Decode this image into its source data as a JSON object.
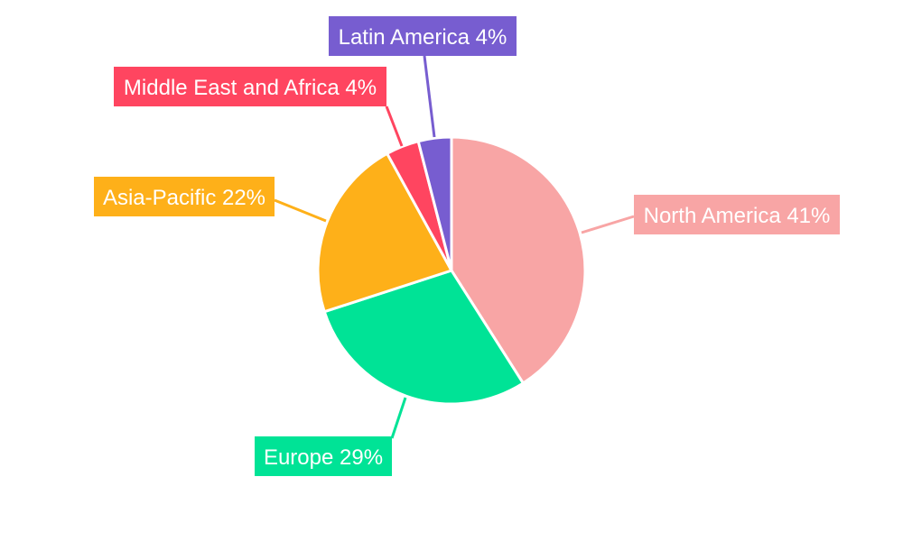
{
  "chart_data": {
    "type": "pie",
    "title": "",
    "start_angle": "top, clockwise",
    "slices": [
      {
        "label": "North America",
        "value": 41,
        "display": "North America 41%",
        "color": "#F8A5A5"
      },
      {
        "label": "Europe",
        "value": 29,
        "display": "Europe 29%",
        "color": "#00E396"
      },
      {
        "label": "Asia-Pacific",
        "value": 22,
        "display": "Asia-Pacific 22%",
        "color": "#FEB019"
      },
      {
        "label": "Middle East and Africa",
        "value": 4,
        "display": "Middle East and Africa 4%",
        "color": "#FF4560"
      },
      {
        "label": "Latin America",
        "value": 4,
        "display": "Latin America 4%",
        "color": "#775DD0"
      }
    ],
    "legend": "none",
    "labels": "outside with leader lines"
  }
}
